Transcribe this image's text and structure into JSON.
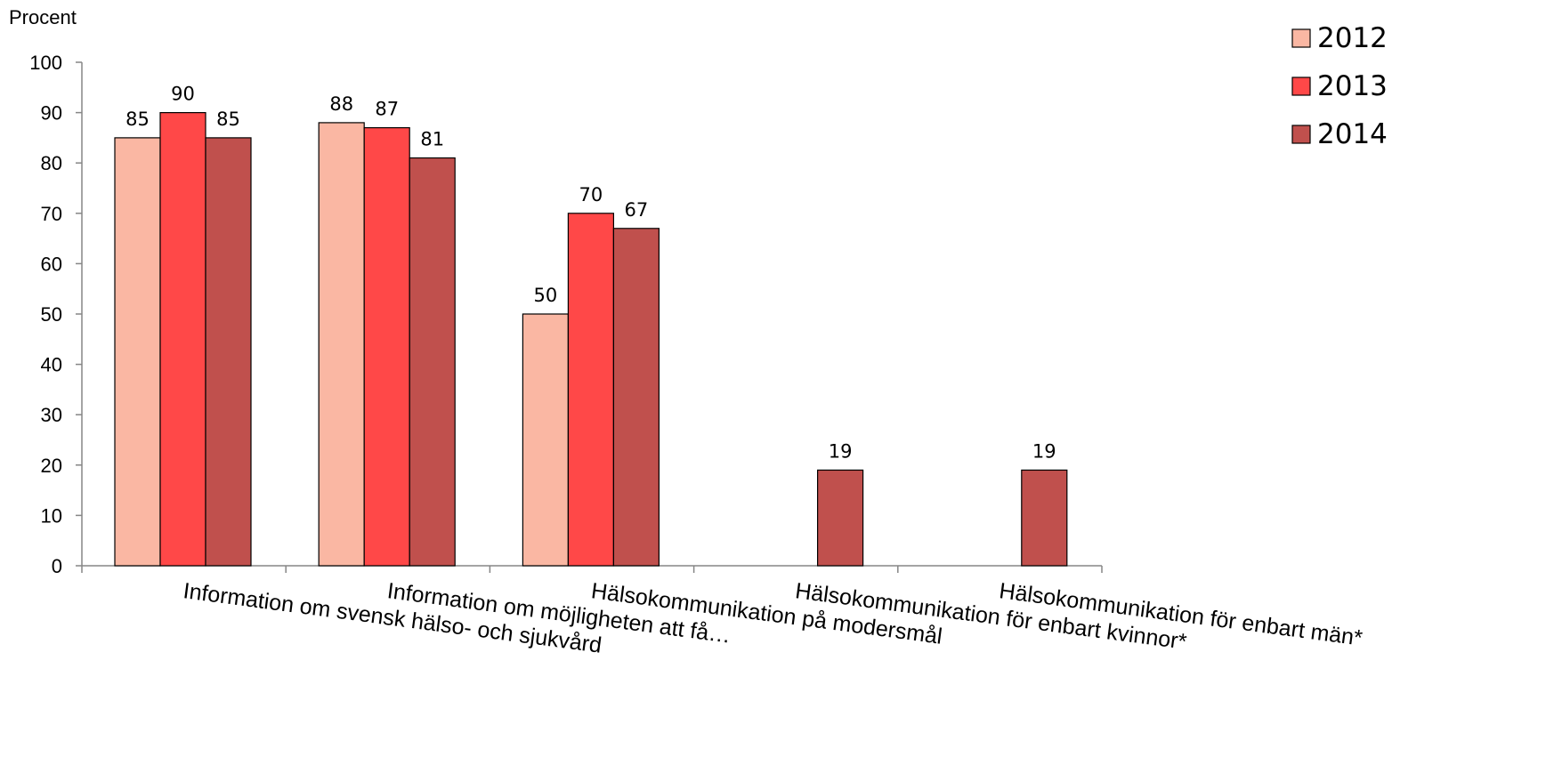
{
  "chart_data": {
    "type": "bar",
    "ylabel": "Procent",
    "ylim": [
      0,
      100
    ],
    "yticks": [
      0,
      10,
      20,
      30,
      40,
      50,
      60,
      70,
      80,
      90,
      100
    ],
    "categories": [
      "Information om svensk hälso- och sjukvård",
      "Information om möjligheten att få…",
      "Hälsokommunikation på modersmål",
      "Hälsokommunikation för enbart kvinnor*",
      "Hälsokommunikation för enbart män*"
    ],
    "series": [
      {
        "name": "2012",
        "color": "#FAB7A3",
        "values": [
          85,
          88,
          50,
          null,
          null
        ]
      },
      {
        "name": "2013",
        "color": "#FF4848",
        "values": [
          90,
          87,
          70,
          null,
          null
        ]
      },
      {
        "name": "2014",
        "color": "#C0504D",
        "values": [
          85,
          81,
          67,
          19,
          19
        ]
      }
    ],
    "legend_position": "top-right",
    "grid": false
  }
}
